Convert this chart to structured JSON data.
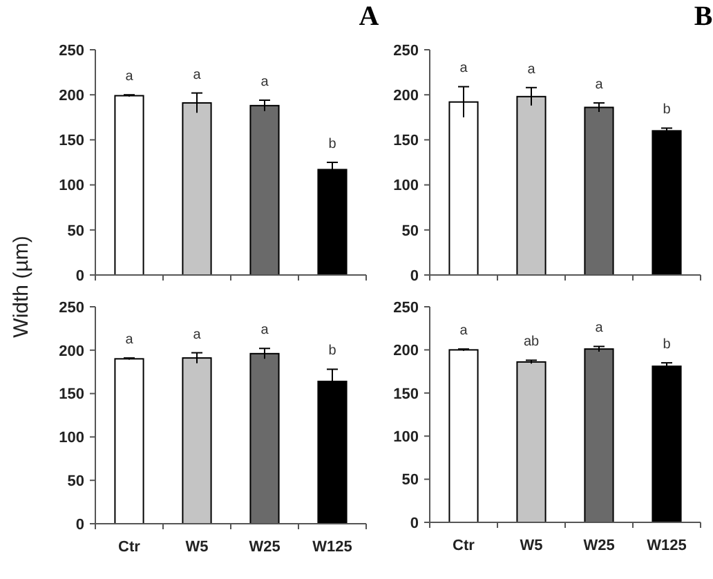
{
  "chart_data": [
    {
      "type": "bar",
      "title": "A",
      "ylabel": "Width (µm)",
      "categories": [
        null,
        null,
        null,
        null
      ],
      "values": [
        199,
        191,
        188,
        117
      ],
      "errors": [
        1,
        11,
        6,
        8
      ],
      "colors": [
        "#ffffff",
        "#c4c4c4",
        "#6a6a6a",
        "#000000"
      ],
      "ylim": [
        0,
        250
      ],
      "yticks": [
        0,
        50,
        100,
        150,
        200,
        250
      ],
      "tick_labels": "y",
      "annotations": [
        "a",
        "a",
        "a",
        "b"
      ]
    },
    {
      "type": "bar",
      "title": "B",
      "categories": [
        null,
        null,
        null,
        null
      ],
      "values": [
        192,
        198,
        186,
        160
      ],
      "errors": [
        17,
        10,
        5,
        3
      ],
      "colors": [
        "#ffffff",
        "#c4c4c4",
        "#6a6a6a",
        "#000000"
      ],
      "ylim": [
        0,
        250
      ],
      "yticks": [
        0,
        50,
        100,
        150,
        200,
        250
      ],
      "tick_labels": "y",
      "annotations": [
        "a",
        "a",
        "a",
        "b"
      ]
    },
    {
      "type": "bar",
      "categories": [
        "Ctr",
        "W5",
        "W25",
        "W125"
      ],
      "values": [
        190,
        191,
        196,
        164
      ],
      "errors": [
        1,
        6,
        6,
        14
      ],
      "colors": [
        "#ffffff",
        "#c4c4c4",
        "#6a6a6a",
        "#000000"
      ],
      "ylim": [
        0,
        250
      ],
      "yticks": [
        0,
        50,
        100,
        150,
        200,
        250
      ],
      "annotations": [
        "a",
        "a",
        "a",
        "b"
      ]
    },
    {
      "type": "bar",
      "categories": [
        "Ctr",
        "W5",
        "W25",
        "W125"
      ],
      "values": [
        200,
        186,
        201,
        181
      ],
      "errors": [
        1,
        2,
        3,
        4
      ],
      "colors": [
        "#ffffff",
        "#c4c4c4",
        "#6a6a6a",
        "#000000"
      ],
      "ylim": [
        0,
        250
      ],
      "yticks": [
        0,
        50,
        100,
        150,
        200,
        250
      ],
      "annotations": [
        "a",
        "ab",
        "a",
        "b"
      ]
    }
  ]
}
